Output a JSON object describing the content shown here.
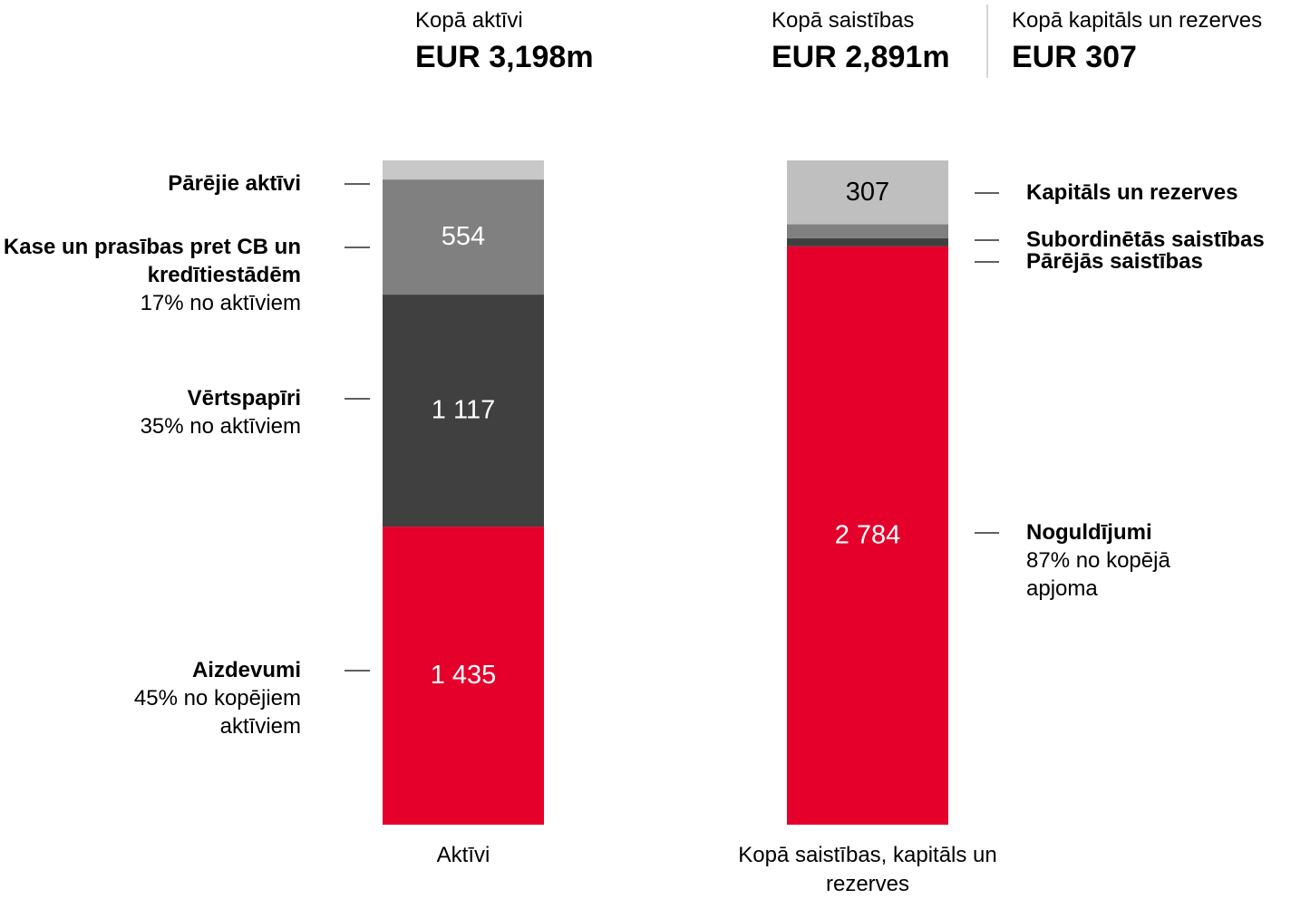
{
  "chart_data": {
    "type": "stacked_bar",
    "header": [
      {
        "label": "Kopā aktīvi",
        "value": "EUR 3,198m"
      },
      {
        "label": "Kopā saistības",
        "value": "EUR 2,891m"
      },
      {
        "label": "Kopā kapitāls un rezerves",
        "value": "EUR 307"
      }
    ],
    "categories": [
      "Aktīvi",
      "Kopā saistības, kapitāls un rezerves"
    ],
    "ylim": [
      0,
      3198
    ],
    "stacks": [
      {
        "segments": [
          {
            "name": "Aizdevumi",
            "note": "45% no kopējiem aktīviem",
            "value": 1435,
            "value_label": "1 435",
            "color": "#e4002b"
          },
          {
            "name": "Vērtspapīri",
            "note": "35% no aktīviem",
            "value": 1117,
            "value_label": "1 117",
            "color": "#404040"
          },
          {
            "name": "Kase un prasības pret CB un kredītiestādēm",
            "note": "17% no aktīviem",
            "value": 554,
            "show_value": true,
            "color": "#808080"
          },
          {
            "name": "Pārējie aktīvi",
            "value": 92,
            "color": "#c8c8c8"
          }
        ]
      },
      {
        "segments": [
          {
            "name": "Noguldījumi",
            "note": "87% no kopējā apjoma",
            "value": 2784,
            "value_label": "2 784",
            "color": "#e4002b"
          },
          {
            "name": "Pārējās saistības",
            "value": 40,
            "color": "#404040"
          },
          {
            "name": "Subordinētās saistības",
            "value": 67,
            "color": "#808080"
          },
          {
            "name": "Kapitāls un rezerves",
            "value": 307,
            "show_value": true,
            "color": "#bfbfbf"
          }
        ]
      }
    ]
  }
}
